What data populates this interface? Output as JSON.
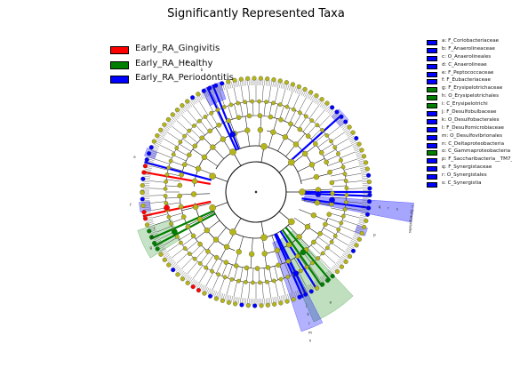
{
  "title": "Significantly Represented Taxa",
  "colors": {
    "gingivitis": "#ff0000",
    "healthy": "#008000",
    "periodontitis": "#0000ff",
    "node": "#b5b51a",
    "edge": "#111111"
  },
  "legend": [
    {
      "label": "Early_RA_Gingivitis",
      "color": "#ff0000"
    },
    {
      "label": "Early_RA_Healthy",
      "color": "#008000"
    },
    {
      "label": "Early_RA_Periodontitis",
      "color": "#0000ff"
    }
  ],
  "key": [
    {
      "label": "a: F_Coriobacteriaceae",
      "color": "#0000ff"
    },
    {
      "label": "b: F_Anaerolineaceae",
      "color": "#0000ff"
    },
    {
      "label": "c: O_Anaerolineales",
      "color": "#0000ff"
    },
    {
      "label": "d: C_Anaerolineae",
      "color": "#0000ff"
    },
    {
      "label": "e: F_Peptococcaceae",
      "color": "#0000ff"
    },
    {
      "label": "f: F_Eubacteriaceae",
      "color": "#0000ff"
    },
    {
      "label": "g: F_Erysipelotrichaceae",
      "color": "#008000"
    },
    {
      "label": "h: O_Erysipelotrichales",
      "color": "#008000"
    },
    {
      "label": "i: C_Erysipelotrichi",
      "color": "#008000"
    },
    {
      "label": "j: F_Desulfobulbaceae",
      "color": "#0000ff"
    },
    {
      "label": "k: O_Desulfobacterales",
      "color": "#0000ff"
    },
    {
      "label": "l: F_Desulfomicrobiaceae",
      "color": "#0000ff"
    },
    {
      "label": "m: O_Desulfovibrionales",
      "color": "#0000ff"
    },
    {
      "label": "n: C_Deltaproteobacteria",
      "color": "#0000ff"
    },
    {
      "label": "o: C_Gammaproteobacteria",
      "color": "#008000"
    },
    {
      "label": "p: F_Saccharibacteria__TM7_",
      "color": "#0000ff"
    },
    {
      "label": "q: F_Synergistaceae",
      "color": "#0000ff"
    },
    {
      "label": "r: O_Synergistales",
      "color": "#0000ff"
    },
    {
      "label": "s: C_Synergistia",
      "color": "#0000ff"
    }
  ],
  "clade_labels": {
    "letters": [
      "a",
      "b",
      "c",
      "d",
      "e",
      "f",
      "g",
      "h",
      "i",
      "j",
      "k",
      "l",
      "m",
      "n",
      "o",
      "p",
      "q",
      "r",
      "s"
    ],
    "synergistales": "r: Synergistales"
  }
}
